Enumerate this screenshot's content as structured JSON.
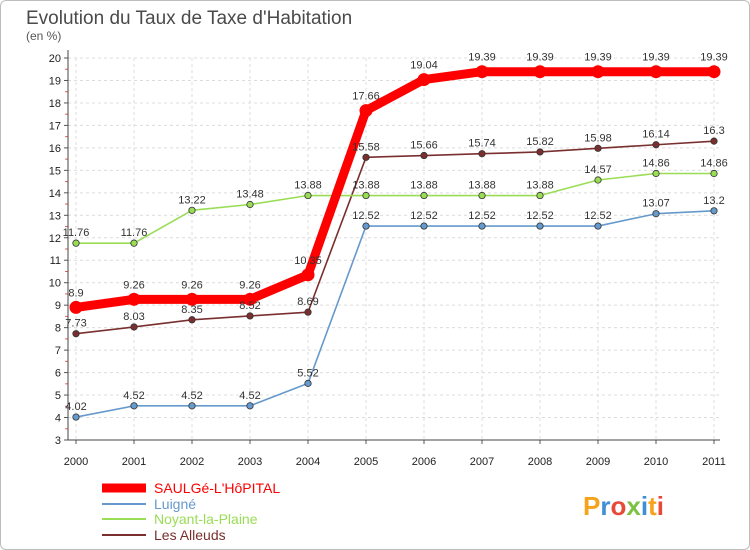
{
  "chart_data": {
    "type": "line",
    "title": "Evolution du Taux de Taxe d'Habitation",
    "subtitle": "(en %)",
    "x": [
      "2000",
      "2001",
      "2002",
      "2003",
      "2004",
      "2005",
      "2006",
      "2007",
      "2008",
      "2009",
      "2010",
      "2011"
    ],
    "ylim": [
      3,
      20
    ],
    "yticks": [
      3,
      4,
      5,
      6,
      7,
      8,
      9,
      10,
      11,
      12,
      13,
      14,
      15,
      16,
      17,
      18,
      19,
      20
    ],
    "grid": true,
    "legend_position": "bottom-left",
    "series": [
      {
        "name": "SAULGé-L'HôPITAL",
        "color": "#ff0000",
        "labels": [
          "8.9",
          "9.26",
          "9.26",
          "9.26",
          "10.35",
          "17.66",
          "19.04",
          "19.39",
          "19.39",
          "19.39",
          "19.39",
          "19.39"
        ],
        "values": [
          8.9,
          9.26,
          9.26,
          9.26,
          10.35,
          17.66,
          19.04,
          19.39,
          19.39,
          19.39,
          19.39,
          19.39
        ]
      },
      {
        "name": "Luigné",
        "color": "#6699cc",
        "labels": [
          "4.02",
          "4.52",
          "4.52",
          "4.52",
          "5.52",
          "12.52",
          "12.52",
          "12.52",
          "12.52",
          "12.52",
          "13.07",
          "13.2"
        ],
        "values": [
          4.02,
          4.52,
          4.52,
          4.52,
          5.52,
          12.52,
          12.52,
          12.52,
          12.52,
          12.52,
          13.07,
          13.2
        ]
      },
      {
        "name": "Noyant-la-Plaine",
        "color": "#99dd55",
        "labels": [
          "11.76",
          "11.76",
          "13.22",
          "13.48",
          "13.88",
          "13.88",
          "13.88",
          "13.88",
          "13.88",
          "14.57",
          "14.86",
          "14.86"
        ],
        "values": [
          11.76,
          11.76,
          13.22,
          13.48,
          13.88,
          13.88,
          13.88,
          13.88,
          13.88,
          14.57,
          14.86,
          14.86
        ]
      },
      {
        "name": "Les Alleuds",
        "color": "#7a2f2f",
        "labels": [
          "7.73",
          "8.03",
          "8.35",
          "8.52",
          "8.69",
          "15.58",
          "15.66",
          "15.74",
          "15.82",
          "15.98",
          "16.14",
          "16.3"
        ],
        "values": [
          7.73,
          8.03,
          8.35,
          8.52,
          8.69,
          15.58,
          15.66,
          15.74,
          15.82,
          15.98,
          16.14,
          16.3
        ]
      }
    ]
  },
  "logo": {
    "text": "Proxiti"
  }
}
